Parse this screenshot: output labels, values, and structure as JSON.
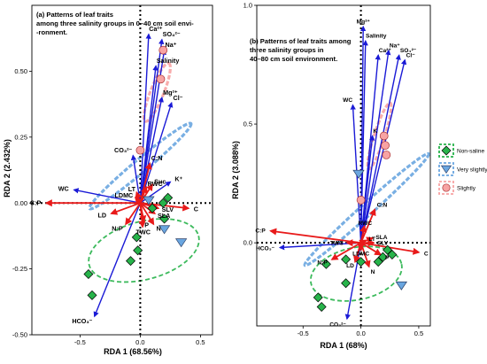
{
  "chart_data": [
    {
      "type": "scatter",
      "title": "(a) Patterns of leaf traits among three salinity groups in 0–40 cm soil envi--ronment.",
      "title_lines": [
        "(a) Patterns of leaf traits",
        "among three salinity groups in 0–40 cm soil envi-",
        "-ronment."
      ],
      "xlabel": "RDA 1 (68.56%)",
      "ylabel": "RDA 2 (2.432%)",
      "xlim": [
        -0.9,
        0.6
      ],
      "ylim": [
        -0.5,
        0.75
      ],
      "xticks": [
        -0.5,
        0.0,
        0.5
      ],
      "xtick_labels": [
        "-0.5",
        "0.0",
        "0.5"
      ],
      "yticks": [
        -0.5,
        -0.25,
        0.0,
        0.25,
        0.5
      ],
      "ytick_labels": [
        "-0.50",
        "-0.25",
        "0.00",
        "0.25",
        "0.50"
      ],
      "vectors": [
        {
          "label": "Ca²⁺",
          "x": 0.07,
          "y": 0.64,
          "color": "blue"
        },
        {
          "label": "SO₄²⁻",
          "x": 0.18,
          "y": 0.62,
          "color": "blue"
        },
        {
          "label": "Na⁺",
          "x": 0.2,
          "y": 0.58,
          "color": "blue"
        },
        {
          "label": "Salinity",
          "x": 0.13,
          "y": 0.52,
          "color": "blue"
        },
        {
          "label": "Mg²⁺",
          "x": 0.18,
          "y": 0.4,
          "color": "blue"
        },
        {
          "label": "Cl⁻",
          "x": 0.26,
          "y": 0.38,
          "color": "blue"
        },
        {
          "label": "CO₃²⁻",
          "x": -0.06,
          "y": 0.18,
          "color": "blue"
        },
        {
          "label": "K⁺",
          "x": 0.25,
          "y": 0.08,
          "color": "blue"
        },
        {
          "label": "WC",
          "x": -0.55,
          "y": 0.05,
          "color": "blue"
        },
        {
          "label": "HCO₃⁻",
          "x": -0.38,
          "y": -0.43,
          "color": "blue"
        },
        {
          "label": "C:N",
          "x": 0.08,
          "y": 0.15,
          "color": "red"
        },
        {
          "label": "Suc",
          "x": 0.1,
          "y": 0.07,
          "color": "red"
        },
        {
          "label": "RWC",
          "x": 0.05,
          "y": 0.06,
          "color": "red"
        },
        {
          "label": "LT",
          "x": -0.03,
          "y": 0.04,
          "color": "red"
        },
        {
          "label": "LDMC",
          "x": -0.04,
          "y": 0.02,
          "color": "red"
        },
        {
          "label": "C",
          "x": 0.4,
          "y": -0.02,
          "color": "red"
        },
        {
          "label": "C:P",
          "x": -0.78,
          "y": 0.0,
          "color": "red"
        },
        {
          "label": "LD",
          "x": -0.24,
          "y": -0.04,
          "color": "red"
        },
        {
          "label": "SLV",
          "x": 0.15,
          "y": -0.02,
          "color": "red"
        },
        {
          "label": "SLA",
          "x": 0.12,
          "y": -0.04,
          "color": "red"
        },
        {
          "label": "N:P",
          "x": -0.12,
          "y": -0.08,
          "color": "red"
        },
        {
          "label": "P",
          "x": 0.03,
          "y": -0.07,
          "color": "red"
        },
        {
          "label": "TWC",
          "x": 0.02,
          "y": -0.09,
          "color": "red"
        },
        {
          "label": "N",
          "x": 0.11,
          "y": -0.08,
          "color": "red"
        }
      ],
      "series": [
        {
          "name": "Non-saline",
          "marker": "diamond",
          "color": "#27b34a",
          "points": [
            [
              -0.4,
              -0.35
            ],
            [
              -0.43,
              -0.27
            ],
            [
              -0.08,
              -0.22
            ],
            [
              -0.02,
              -0.18
            ],
            [
              -0.03,
              -0.13
            ],
            [
              0.2,
              -0.06
            ],
            [
              0.19,
              0.0
            ],
            [
              0.23,
              0.02
            ],
            [
              0.1,
              -0.02
            ]
          ]
        },
        {
          "name": "Very slightly",
          "marker": "triangle-down",
          "color": "#6aa6e0",
          "points": [
            [
              0.34,
              -0.15
            ],
            [
              0.2,
              -0.1
            ],
            [
              0.07,
              0.01
            ]
          ]
        },
        {
          "name": "Slightly",
          "marker": "circle",
          "color": "#f7a3a3",
          "points": [
            [
              0.19,
              0.58
            ],
            [
              0.17,
              0.47
            ],
            [
              0.0,
              0.2
            ]
          ]
        }
      ]
    },
    {
      "type": "scatter",
      "title": "(b) Patterns of leaf traits among three salinity groups in 40–80 cm soil environment.",
      "title_lines": [
        "(b) Patterns of leaf traits among",
        "three salinity groups in",
        "40–80 cm soil environment."
      ],
      "xlabel": "RDA 1 (68%)",
      "ylabel": "RDA 2 (3.088%)",
      "xlim": [
        -0.9,
        0.6
      ],
      "ylim": [
        -0.35,
        1.0
      ],
      "xticks": [
        -0.5,
        0.0,
        0.5
      ],
      "xtick_labels": [
        "-0.5",
        "0.0",
        "0.5"
      ],
      "yticks": [
        0.0,
        0.5,
        1.0
      ],
      "ytick_labels": [
        "0.0",
        "0.5",
        "1.0"
      ],
      "vectors": [
        {
          "label": "Salinity",
          "x": 0.04,
          "y": 0.85,
          "color": "blue"
        },
        {
          "label": "Mg²⁺",
          "x": 0.02,
          "y": 0.91,
          "color": "blue"
        },
        {
          "label": "Ca²⁺",
          "x": 0.15,
          "y": 0.79,
          "color": "blue"
        },
        {
          "label": "Na⁺",
          "x": 0.24,
          "y": 0.81,
          "color": "blue"
        },
        {
          "label": "SO₄²⁻",
          "x": 0.33,
          "y": 0.79,
          "color": "blue"
        },
        {
          "label": "Cl⁻",
          "x": 0.38,
          "y": 0.77,
          "color": "blue"
        },
        {
          "label": "WC",
          "x": -0.07,
          "y": 0.58,
          "color": "blue"
        },
        {
          "label": "K",
          "x": 0.1,
          "y": 0.45,
          "color": "blue"
        },
        {
          "label": "HCO₃⁻",
          "x": -0.7,
          "y": -0.02,
          "color": "blue"
        },
        {
          "label": "CO₃²⁻",
          "x": -0.12,
          "y": -0.32,
          "color": "blue"
        },
        {
          "label": "C:N",
          "x": 0.12,
          "y": 0.14,
          "color": "red"
        },
        {
          "label": "RWC",
          "x": 0.03,
          "y": 0.07,
          "color": "red"
        },
        {
          "label": "C:P",
          "x": -0.78,
          "y": 0.05,
          "color": "red"
        },
        {
          "label": "C",
          "x": 0.5,
          "y": -0.04,
          "color": "red"
        },
        {
          "label": "TWC",
          "x": -0.12,
          "y": 0.0,
          "color": "red"
        },
        {
          "label": "SLA",
          "x": 0.1,
          "y": 0.02,
          "color": "red"
        },
        {
          "label": "SLV",
          "x": 0.11,
          "y": 0.0,
          "color": "red"
        },
        {
          "label": "LT",
          "x": 0.04,
          "y": 0.01,
          "color": "red"
        },
        {
          "label": "N:P",
          "x": -0.25,
          "y": -0.07,
          "color": "red"
        },
        {
          "label": "LDMC",
          "x": 0.0,
          "y": -0.03,
          "color": "red"
        },
        {
          "label": "LD",
          "x": -0.05,
          "y": -0.08,
          "color": "red"
        },
        {
          "label": "P",
          "x": 0.17,
          "y": -0.05,
          "color": "red"
        },
        {
          "label": "N",
          "x": 0.07,
          "y": -0.1,
          "color": "red"
        }
      ],
      "series": [
        {
          "name": "Non-saline",
          "marker": "diamond",
          "color": "#27b34a",
          "points": [
            [
              -0.34,
              -0.27
            ],
            [
              -0.37,
              -0.23
            ],
            [
              -0.3,
              -0.09
            ],
            [
              -0.13,
              -0.07
            ],
            [
              -0.13,
              -0.17
            ],
            [
              0.0,
              -0.08
            ],
            [
              0.15,
              -0.08
            ],
            [
              0.19,
              -0.06
            ],
            [
              0.23,
              -0.03
            ],
            [
              0.27,
              -0.05
            ]
          ]
        },
        {
          "name": "Very slightly",
          "marker": "triangle-down",
          "color": "#6aa6e0",
          "points": [
            [
              -0.02,
              0.29
            ],
            [
              0.35,
              -0.18
            ]
          ]
        },
        {
          "name": "Slightly",
          "marker": "circle",
          "color": "#f7a3a3",
          "points": [
            [
              0.2,
              0.45
            ],
            [
              0.21,
              0.41
            ],
            [
              0.22,
              0.37
            ],
            [
              0.0,
              0.18
            ]
          ]
        }
      ]
    }
  ],
  "legend": {
    "placement": "right",
    "items": [
      {
        "name": "Non-saline",
        "marker": "diamond",
        "color": "#27b34a"
      },
      {
        "name": "Very slightly",
        "marker": "triangle-down",
        "color": "#6aa6e0"
      },
      {
        "name": "Slightly",
        "marker": "circle",
        "color": "#f7a3a3"
      }
    ]
  },
  "colors": {
    "env_vector": "#1a1ad6",
    "trait_vector": "#e81a1a",
    "non_saline": "#27b34a",
    "very_slightly": "#6aa6e0",
    "slightly": "#f7a3a3"
  }
}
